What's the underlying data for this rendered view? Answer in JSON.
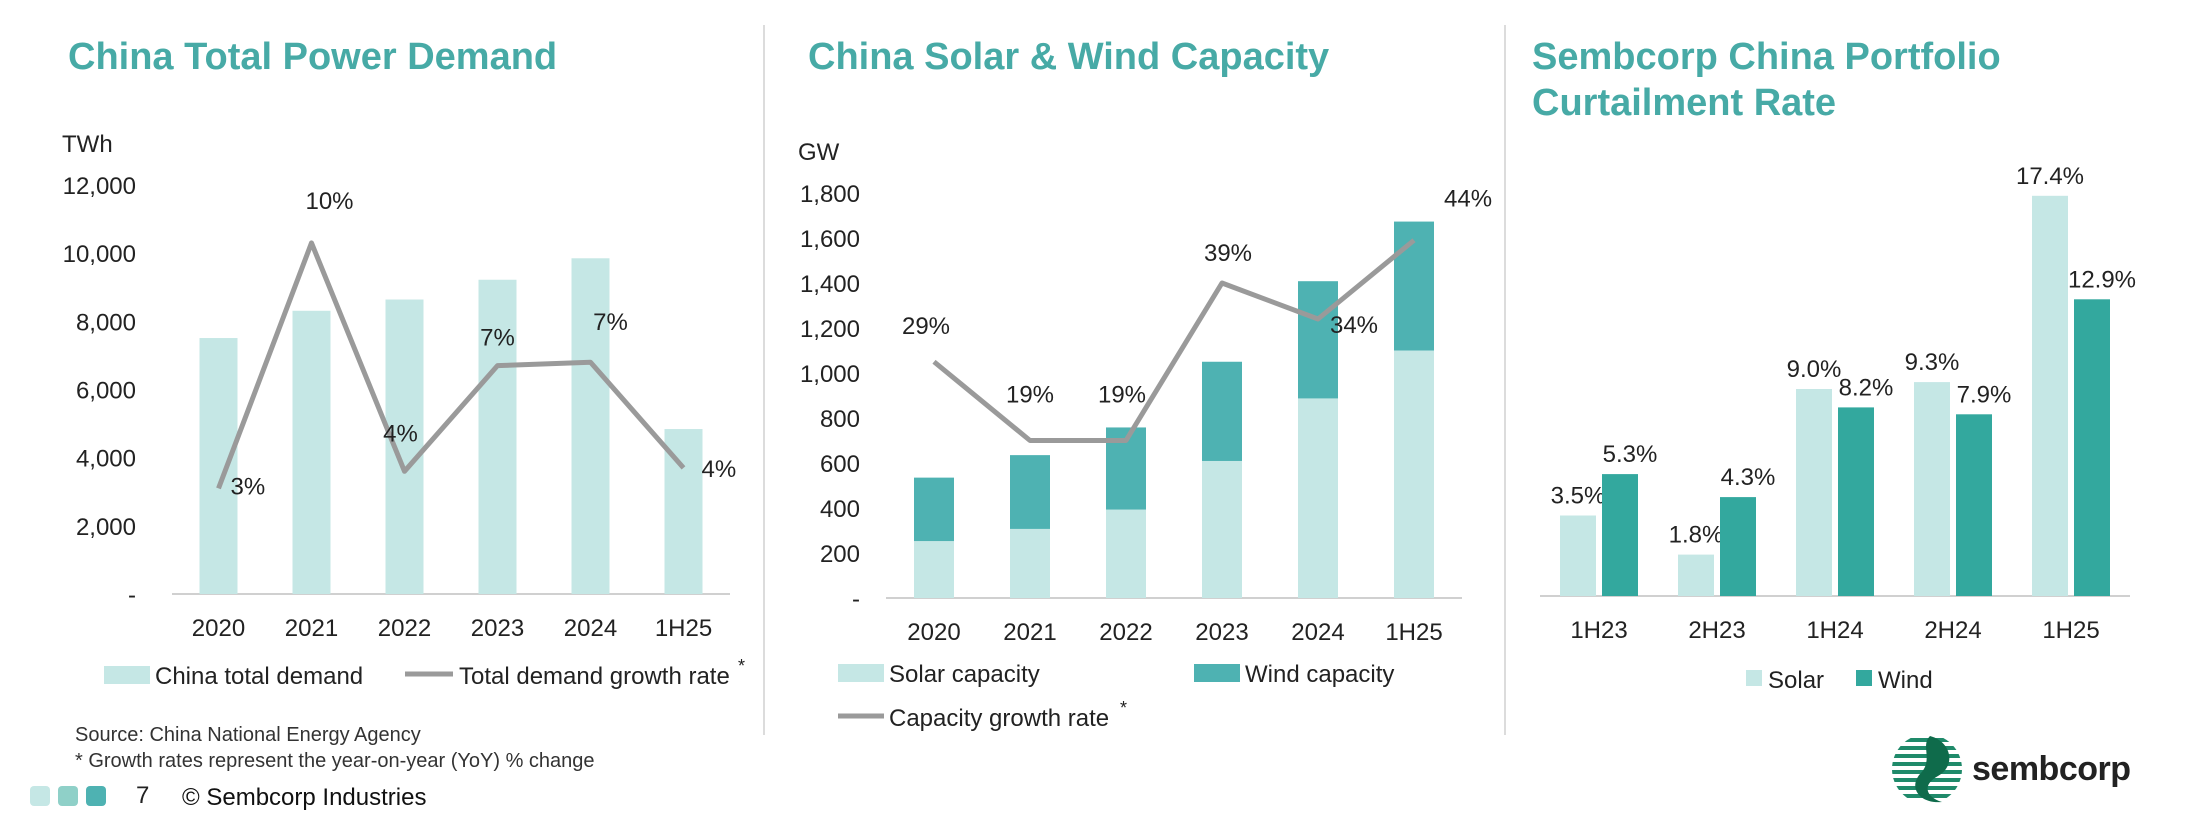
{
  "colors": {
    "title": "#47aaa6",
    "light_teal": "#c5e7e5",
    "dark_teal": "#4eb2b2",
    "wind_teal": "#33a89e",
    "gray_line": "#9a9a9a",
    "axis": "#d0d0d0"
  },
  "panels": {
    "demand": {
      "title": "China Total Power Demand"
    },
    "capacity": {
      "title": "China Solar & Wind Capacity"
    },
    "curtailment": {
      "title_line1": "Sembcorp China Portfolio",
      "title_line2": "Curtailment Rate"
    }
  },
  "chart_data": [
    {
      "type": "bar",
      "title": "China Total Power Demand",
      "ylabel": "TWh",
      "categories": [
        "2020",
        "2021",
        "2022",
        "2023",
        "2024",
        "1H25"
      ],
      "ylim": [
        0,
        12000
      ],
      "yticks": [
        "-",
        "2,000",
        "4,000",
        "6,000",
        "8,000",
        "10,000",
        "12,000"
      ],
      "series": [
        {
          "name": "China total demand",
          "values": [
            7510,
            8310,
            8640,
            9220,
            9850,
            4840
          ]
        }
      ],
      "line_series": {
        "name": "Total demand growth rate",
        "superscript": "*",
        "growth_pct": [
          3,
          10,
          4,
          7,
          7,
          4
        ],
        "labels": [
          "3%",
          "10%",
          "4%",
          "7%",
          "7%",
          "4%"
        ],
        "y_pos": [
          3100,
          10300,
          3600,
          6700,
          6800,
          3700
        ]
      },
      "legend": [
        "China total demand",
        "Total demand growth rate"
      ]
    },
    {
      "type": "bar",
      "stacked": true,
      "title": "China Solar & Wind Capacity",
      "ylabel": "GW",
      "categories": [
        "2020",
        "2021",
        "2022",
        "2023",
        "2024",
        "1H25"
      ],
      "ylim": [
        0,
        1800
      ],
      "yticks": [
        "-",
        "200",
        "400",
        "600",
        "800",
        "1,000",
        "1,200",
        "1,400",
        "1,600",
        "1,800"
      ],
      "series": [
        {
          "name": "Solar capacity",
          "values": [
            253,
            307,
            393,
            609,
            887,
            1100
          ]
        },
        {
          "name": "Wind capacity",
          "values": [
            282,
            328,
            365,
            441,
            521,
            573
          ]
        }
      ],
      "line_series": {
        "name": "Capacity growth rate",
        "superscript": "*",
        "growth_pct": [
          29,
          19,
          19,
          39,
          34,
          44
        ],
        "labels": [
          "29%",
          "19%",
          "19%",
          "39%",
          "34%",
          "44%"
        ],
        "y_pos": [
          1050,
          700,
          700,
          1400,
          1240,
          1590
        ]
      },
      "legend": [
        "Solar capacity",
        "Wind capacity",
        "Capacity growth rate"
      ]
    },
    {
      "type": "bar",
      "title": "Sembcorp China Portfolio Curtailment Rate",
      "categories": [
        "1H23",
        "2H23",
        "1H24",
        "2H24",
        "1H25"
      ],
      "ylim": [
        0,
        18
      ],
      "series": [
        {
          "name": "Solar",
          "values": [
            3.5,
            1.8,
            9.0,
            9.3,
            17.4
          ],
          "labels": [
            "3.5%",
            "1.8%",
            "9.0%",
            "9.3%",
            "17.4%"
          ]
        },
        {
          "name": "Wind",
          "values": [
            5.3,
            4.3,
            8.2,
            7.9,
            12.9
          ],
          "labels": [
            "5.3%",
            "4.3%",
            "8.2%",
            "7.9%",
            "12.9%"
          ]
        }
      ],
      "legend": [
        "Solar",
        "Wind"
      ]
    }
  ],
  "footer": {
    "source": "Source: China National Energy Agency",
    "note": "* Growth rates represent the year-on-year (YoY) % change",
    "page_number": "7",
    "copyright": "© Sembcorp Industries",
    "logo_text": "sembcorp"
  }
}
